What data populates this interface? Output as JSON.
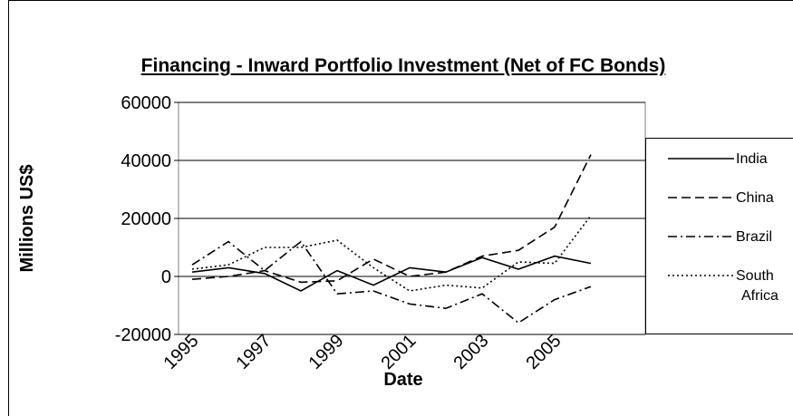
{
  "chart_data": {
    "type": "line",
    "title": "Financing - Inward Portfolio Investment (Net of FC Bonds)",
    "x_label": "Date",
    "y_label": "Millions US$",
    "categories": [
      "1995",
      null,
      "1997",
      null,
      "1999",
      null,
      "2001",
      null,
      "2003",
      null,
      "2005",
      null
    ],
    "series": [
      {
        "name": "India",
        "color": "#000000",
        "dash": "solid",
        "values": [
          1500,
          3000,
          1000,
          -5000,
          2000,
          -3000,
          3000,
          1500,
          6500,
          2500,
          7000,
          4500
        ]
      },
      {
        "name": "China",
        "color": "#000000",
        "dash": "dashed",
        "values": [
          -1000,
          0,
          2000,
          -2000,
          -1500,
          6000,
          0,
          1500,
          7000,
          9000,
          17000,
          42000
        ]
      },
      {
        "name": "Brazil",
        "color": "#000000",
        "dash": "dashdot",
        "values": [
          4000,
          12000,
          2000,
          12000,
          -6000,
          -5000,
          -9500,
          -11000,
          -6000,
          -16000,
          -8000,
          -3500
        ]
      },
      {
        "name": "South Africa",
        "color": "#000000",
        "dash": "dotted",
        "values": [
          2500,
          4000,
          10000,
          10000,
          12500,
          3000,
          -5000,
          -3000,
          -4000,
          5000,
          4500,
          21000
        ]
      }
    ],
    "ylim": [
      -20000,
      60000
    ],
    "yticks": [
      -20000,
      0,
      20000,
      40000,
      60000
    ],
    "grid": true,
    "legend": "right"
  }
}
